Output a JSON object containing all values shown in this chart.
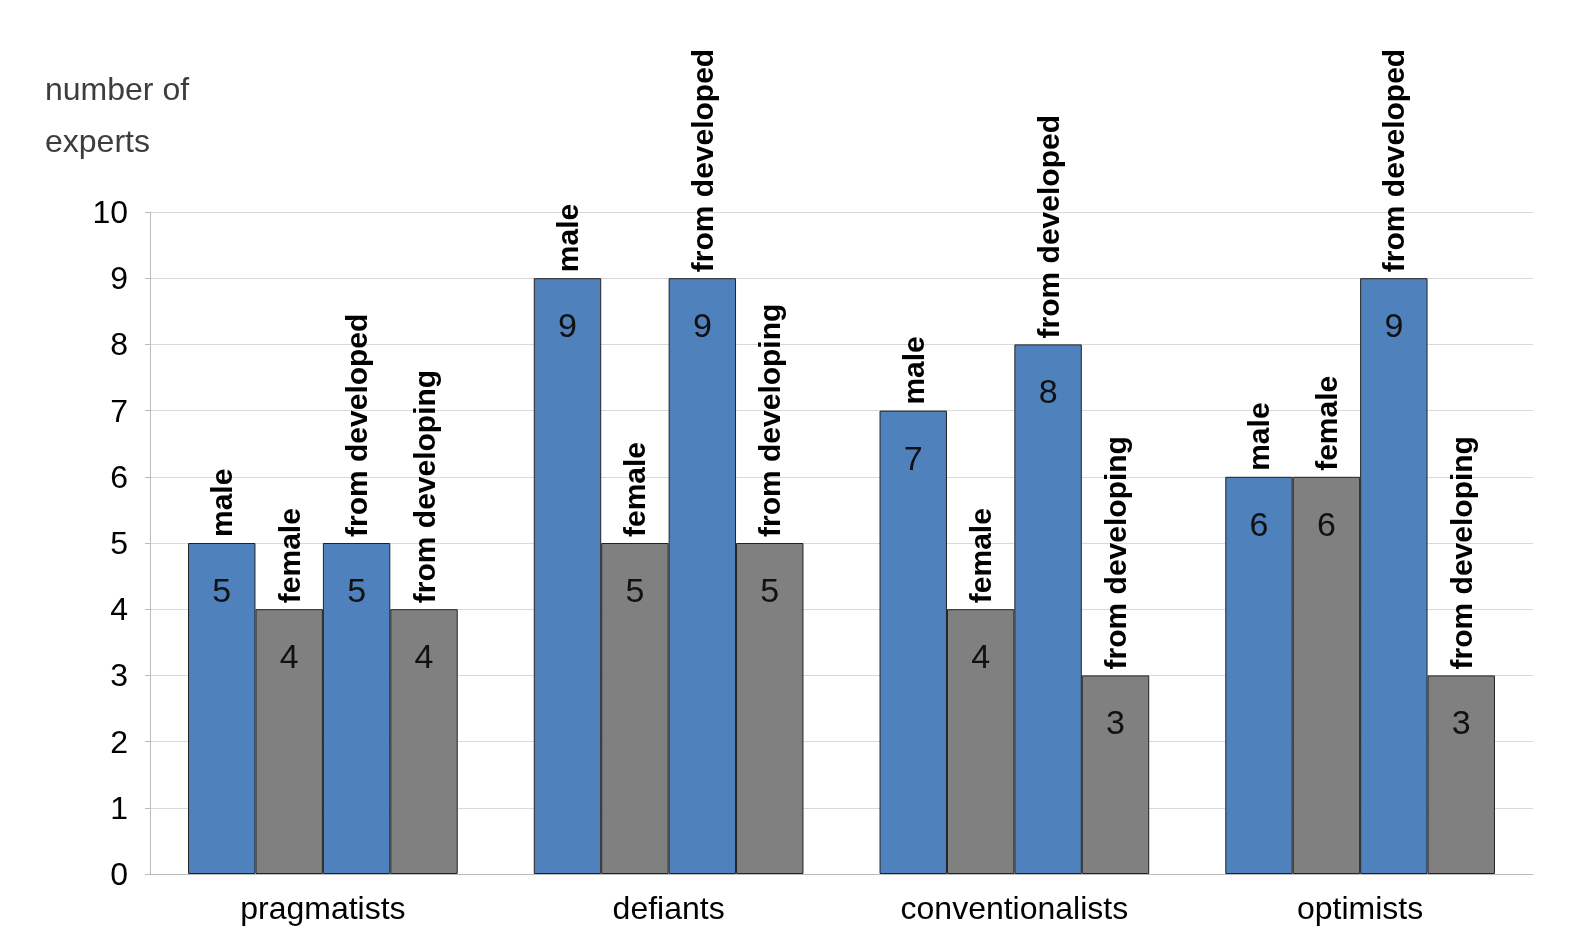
{
  "chart_data": {
    "type": "bar",
    "ylabel": "number of experts",
    "categories": [
      "pragmatists",
      "defiants",
      "conventionalists",
      "optimists"
    ],
    "series": [
      {
        "name": "male",
        "color": "#4f81bd",
        "values": [
          5,
          9,
          7,
          6
        ]
      },
      {
        "name": "female",
        "color": "#808080",
        "values": [
          4,
          5,
          4,
          6
        ]
      },
      {
        "name": "from developed",
        "color": "#4f81bd",
        "values": [
          5,
          9,
          8,
          9
        ]
      },
      {
        "name": "from developing",
        "color": "#808080",
        "values": [
          4,
          5,
          3,
          3
        ]
      }
    ],
    "ylim": [
      0,
      10
    ],
    "yticks": [
      0,
      1,
      2,
      3,
      4,
      5,
      6,
      7,
      8,
      9,
      10
    ],
    "grid": "y",
    "data_labels": true,
    "legend": false
  }
}
